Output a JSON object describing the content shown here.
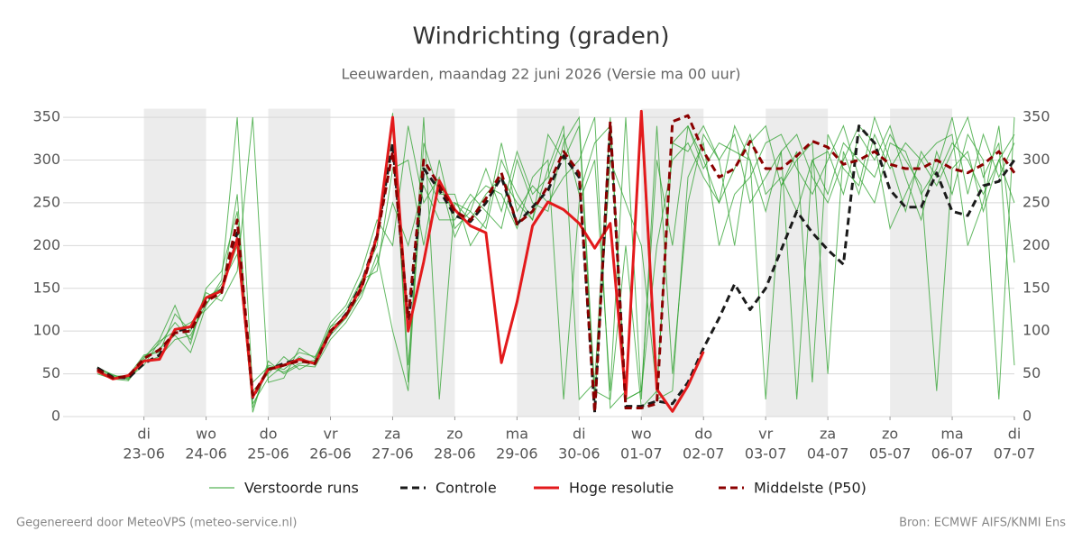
{
  "chart_data": {
    "type": "line",
    "title": "Windrichting (graden)",
    "subtitle": "Leeuwarden, maandag 22 juni 2026 (Versie ma 00 uur)",
    "footer_left": "Gegenereerd door MeteoVPS (meteo-service.nl)",
    "footer_right": "Bron: ECMWF AIFS/KNMI Ens",
    "x": [
      0.25,
      0.5,
      0.75,
      1,
      1.25,
      1.5,
      1.75,
      2,
      2.25,
      2.5,
      2.75,
      3,
      3.25,
      3.5,
      3.75,
      4,
      4.25,
      4.5,
      4.75,
      5,
      5.25,
      5.5,
      5.75,
      6,
      6.25,
      6.5,
      6.75,
      7,
      7.25,
      7.5,
      7.75,
      8,
      8.25,
      8.5,
      8.75,
      9,
      9.25,
      9.5,
      9.75,
      10,
      10.25,
      10.5,
      10.75,
      11,
      11.25,
      11.5,
      11.75,
      12,
      12.25,
      12.5,
      12.75,
      13,
      13.25,
      13.5,
      13.75,
      14,
      14.25,
      14.5,
      14.75,
      15
    ],
    "xlim": [
      -0.3,
      15
    ],
    "xticks": [
      {
        "value": 1,
        "label": "23-06",
        "weekday": "di"
      },
      {
        "value": 2,
        "label": "24-06",
        "weekday": "wo"
      },
      {
        "value": 3,
        "label": "25-06",
        "weekday": "do"
      },
      {
        "value": 4,
        "label": "26-06",
        "weekday": "vr"
      },
      {
        "value": 5,
        "label": "27-06",
        "weekday": "za"
      },
      {
        "value": 6,
        "label": "28-06",
        "weekday": "zo"
      },
      {
        "value": 7,
        "label": "29-06",
        "weekday": "ma"
      },
      {
        "value": 8,
        "label": "30-06",
        "weekday": "di"
      },
      {
        "value": 9,
        "label": "01-07",
        "weekday": "wo"
      },
      {
        "value": 10,
        "label": "02-07",
        "weekday": "do"
      },
      {
        "value": 11,
        "label": "03-07",
        "weekday": "vr"
      },
      {
        "value": 12,
        "label": "04-07",
        "weekday": "za"
      },
      {
        "value": 13,
        "label": "05-07",
        "weekday": "zo"
      },
      {
        "value": 14,
        "label": "06-07",
        "weekday": "ma"
      },
      {
        "value": 15,
        "label": "07-07",
        "weekday": "di"
      }
    ],
    "ylim": [
      0,
      360
    ],
    "yticks": [
      0,
      50,
      100,
      150,
      200,
      250,
      300,
      350
    ],
    "grid": true,
    "ensemble": {
      "name": "Verstoorde runs",
      "color": "#2ca02c",
      "members": [
        [
          58,
          48,
          44,
          70,
          85,
          110,
          90,
          140,
          150,
          200,
          10,
          60,
          55,
          70,
          60,
          105,
          125,
          160,
          200,
          340,
          60,
          290,
          250,
          250,
          240,
          220,
          300,
          260,
          230,
          290,
          340,
          20,
          40,
          350,
          20,
          30,
          200,
          300,
          320,
          280,
          250,
          340,
          300,
          240,
          310,
          330,
          280,
          250,
          300,
          340,
          320,
          220,
          260,
          300,
          320,
          330,
          200,
          250,
          340,
          180
        ],
        [
          50,
          44,
          42,
          66,
          80,
          95,
          75,
          130,
          160,
          350,
          30,
          50,
          70,
          55,
          65,
          95,
          115,
          145,
          180,
          250,
          200,
          270,
          230,
          230,
          260,
          240,
          220,
          300,
          250,
          240,
          320,
          350,
          30,
          20,
          200,
          10,
          30,
          320,
          340,
          300,
          250,
          290,
          330,
          260,
          280,
          240,
          300,
          310,
          260,
          330,
          300,
          340,
          280,
          230,
          310,
          260,
          330,
          300,
          20,
          350
        ],
        [
          56,
          47,
          48,
          72,
          75,
          120,
          100,
          145,
          135,
          170,
          350,
          40,
          45,
          80,
          68,
          110,
          130,
          170,
          230,
          200,
          340,
          250,
          280,
          210,
          250,
          270,
          260,
          220,
          280,
          300,
          20,
          250,
          300,
          30,
          350,
          20,
          340,
          50,
          250,
          330,
          300,
          200,
          320,
          340,
          270,
          310,
          40,
          330,
          290,
          270,
          350,
          300,
          240,
          310,
          280,
          320,
          300,
          260,
          300,
          250
        ],
        [
          54,
          46,
          45,
          60,
          88,
          100,
          110,
          125,
          145,
          260,
          5,
          65,
          50,
          60,
          58,
          90,
          110,
          140,
          190,
          100,
          30,
          320,
          260,
          260,
          200,
          230,
          320,
          240,
          270,
          250,
          280,
          300,
          350,
          10,
          30,
          340,
          20,
          30,
          280,
          320,
          200,
          260,
          280,
          320,
          330,
          290,
          260,
          300,
          340,
          280,
          250,
          320,
          310,
          260,
          290,
          350,
          260,
          330,
          280,
          320
        ],
        [
          57,
          49,
          43,
          68,
          90,
          130,
          85,
          150,
          170,
          240,
          15,
          45,
          60,
          75,
          70,
          100,
          120,
          150,
          215,
          355,
          40,
          350,
          20,
          250,
          230,
          260,
          280,
          250,
          230,
          330,
          300,
          340,
          15,
          300,
          250,
          200,
          30,
          320,
          310,
          340,
          300,
          330,
          250,
          280,
          310,
          20,
          300,
          260,
          320,
          300,
          280,
          330,
          300,
          270,
          30,
          290,
          310,
          240,
          300,
          330
        ],
        [
          53,
          45,
          46,
          64,
          70,
          90,
          95,
          132,
          155,
          190,
          40,
          58,
          52,
          62,
          66,
          105,
          115,
          160,
          170,
          290,
          300,
          200,
          300,
          220,
          240,
          290,
          240,
          310,
          260,
          280,
          330,
          260,
          320,
          340,
          20,
          30,
          300,
          200,
          340,
          290,
          320,
          310,
          300,
          20,
          270,
          300,
          320,
          50,
          310,
          260,
          330,
          290,
          320,
          300,
          270,
          310,
          350,
          280,
          320,
          60
        ]
      ]
    },
    "series": [
      {
        "name": "Controle",
        "color": "#1a1a1a",
        "style": "dashed",
        "values": [
          57,
          46,
          45,
          62,
          72,
          100,
          103,
          137,
          148,
          215,
          22,
          55,
          62,
          67,
          62,
          98,
          120,
          155,
          212,
          320,
          105,
          290,
          265,
          235,
          228,
          250,
          280,
          225,
          245,
          265,
          305,
          280,
          5,
          340,
          12,
          12,
          18,
          15,
          40,
          80,
          115,
          155,
          125,
          150,
          195,
          240,
          215,
          195,
          178,
          340,
          320,
          265,
          245,
          245,
          285,
          240,
          235,
          270,
          275,
          300
        ]
      },
      {
        "name": "Hoge resolutie",
        "color": "#e31a1c",
        "style": "solid",
        "values": [
          53,
          44,
          48,
          65,
          67,
          102,
          105,
          139,
          147,
          208,
          23,
          55,
          60,
          67,
          62,
          99,
          118,
          152,
          211,
          350,
          100,
          181,
          276,
          242,
          223,
          215,
          63,
          134,
          223,
          251,
          242,
          226,
          197,
          226,
          23,
          357,
          32,
          6,
          36,
          76,
          null,
          null,
          null,
          null,
          null,
          null,
          null,
          null,
          null,
          null,
          null,
          null,
          null,
          null,
          null,
          null,
          null,
          null,
          null,
          null
        ]
      },
      {
        "name": "Middelste (P50)",
        "color": "#8b0000",
        "style": "dashed",
        "values": [
          55,
          45,
          47,
          68,
          78,
          98,
          100,
          135,
          145,
          230,
          25,
          55,
          60,
          65,
          62,
          100,
          118,
          150,
          210,
          310,
          115,
          300,
          270,
          240,
          230,
          255,
          285,
          225,
          240,
          270,
          310,
          285,
          5,
          345,
          10,
          10,
          15,
          345,
          352,
          310,
          280,
          290,
          322,
          290,
          290,
          305,
          322,
          315,
          295,
          300,
          310,
          295,
          290,
          290,
          300,
          290,
          285,
          295,
          310,
          285
        ]
      }
    ]
  }
}
